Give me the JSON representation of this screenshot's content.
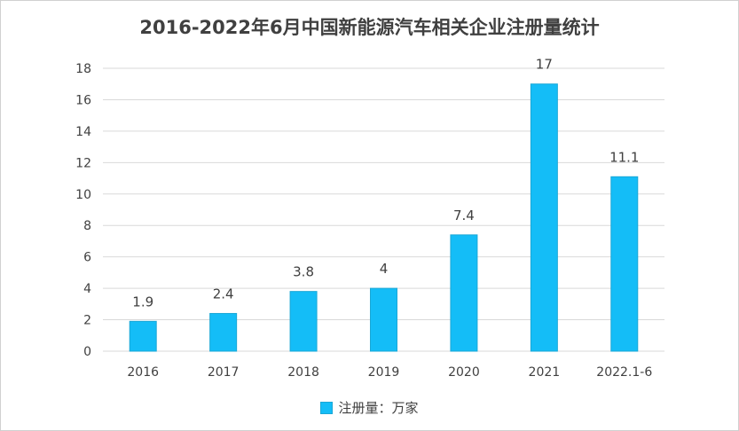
{
  "chart_data": {
    "type": "bar",
    "title": "2016-2022年6月中国新能源汽车相关企业注册量统计",
    "categories": [
      "2016",
      "2017",
      "2018",
      "2019",
      "2020",
      "2021",
      "2022.1-6"
    ],
    "series": [
      {
        "name": "注册量：万家",
        "values": [
          1.9,
          2.4,
          3.8,
          4,
          7.4,
          17,
          11.1
        ],
        "data_labels": [
          "1.9",
          "2.4",
          "3.8",
          "4",
          "7.4",
          "17",
          "11.1"
        ]
      }
    ],
    "ylim": [
      0,
      18
    ],
    "yticks": [
      "0",
      "2",
      "4",
      "6",
      "8",
      "10",
      "12",
      "14",
      "16",
      "18"
    ],
    "xlabel": "",
    "ylabel": "",
    "grid": true,
    "legend_position": "bottom",
    "bar_color": "#14bdf7",
    "bar_edge_color": "#1aa7d6",
    "grid_color": "#d9d9d9"
  }
}
